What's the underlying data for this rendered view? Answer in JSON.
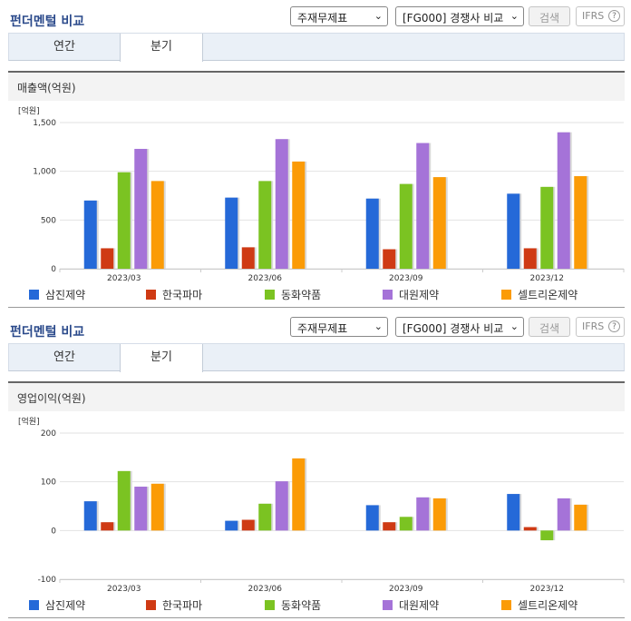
{
  "sections": [
    {
      "title": "펀더멘털 비교",
      "statement_select": "주재무제표",
      "compare_select": "[FG000] 경쟁사 비교",
      "search_label": "검색",
      "ifrs_label": "IFRS",
      "help_label": "?",
      "tabs": [
        "연간",
        "분기"
      ],
      "active_tab": 1,
      "chart_title": "매출액(억원)"
    },
    {
      "title": "펀더멘털 비교",
      "statement_select": "주재무제표",
      "compare_select": "[FG000] 경쟁사 비교",
      "search_label": "검색",
      "ifrs_label": "IFRS",
      "help_label": "?",
      "tabs": [
        "연간",
        "분기"
      ],
      "active_tab": 1,
      "chart_title": "영업이익(억원)"
    }
  ],
  "colors": {
    "삼진제약": "#2569d8",
    "한국파마": "#cf3a14",
    "동화약품": "#7bc322",
    "대원제약": "#a573d8",
    "셀트리온제약": "#fb9b06"
  },
  "chart_data": [
    {
      "type": "bar",
      "unit_label": "[억원]",
      "categories": [
        "2023/03",
        "2023/06",
        "2023/09",
        "2023/12"
      ],
      "ylim": [
        0,
        1500
      ],
      "yticks": [
        0,
        500,
        1000,
        1500
      ],
      "ytick_labels": [
        "0",
        "500",
        "1,000",
        "1,500"
      ],
      "grid": true,
      "legend": "bottom",
      "series": [
        {
          "name": "삼진제약",
          "values": [
            700,
            730,
            720,
            770
          ]
        },
        {
          "name": "한국파마",
          "values": [
            210,
            220,
            200,
            210
          ]
        },
        {
          "name": "동화약품",
          "values": [
            990,
            900,
            870,
            840
          ]
        },
        {
          "name": "대원제약",
          "values": [
            1230,
            1330,
            1290,
            1400
          ]
        },
        {
          "name": "셀트리온제약",
          "values": [
            900,
            1100,
            940,
            950
          ]
        }
      ]
    },
    {
      "type": "bar",
      "unit_label": "[억원]",
      "categories": [
        "2023/03",
        "2023/06",
        "2023/09",
        "2023/12"
      ],
      "ylim": [
        -100,
        200
      ],
      "yticks": [
        -100,
        0,
        100,
        200
      ],
      "ytick_labels": [
        "-100",
        "0",
        "100",
        "200"
      ],
      "grid": true,
      "legend": "bottom",
      "series": [
        {
          "name": "삼진제약",
          "values": [
            60,
            20,
            52,
            75
          ]
        },
        {
          "name": "한국파마",
          "values": [
            17,
            22,
            17,
            7
          ]
        },
        {
          "name": "동화약품",
          "values": [
            122,
            55,
            28,
            -20
          ]
        },
        {
          "name": "대원제약",
          "values": [
            90,
            101,
            68,
            66
          ]
        },
        {
          "name": "셀트리온제약",
          "values": [
            96,
            148,
            66,
            53
          ]
        }
      ]
    }
  ]
}
